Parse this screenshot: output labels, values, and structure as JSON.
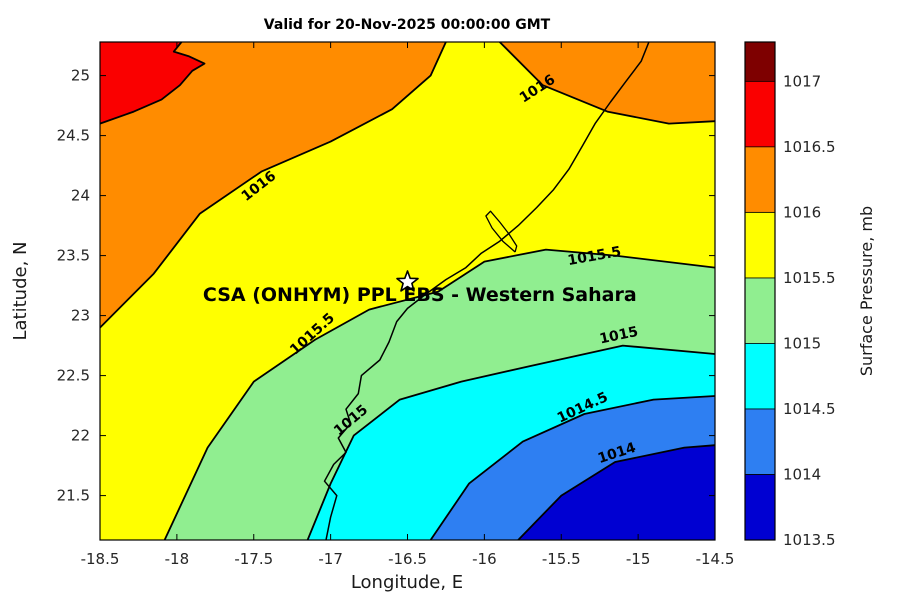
{
  "title": "Valid for 20-Nov-2025 00:00:00 GMT",
  "axes": {
    "xlabel": "Longitude, E",
    "ylabel": "Latitude, N",
    "xlim": [
      -18.5,
      -14.5
    ],
    "ylim": [
      21.13,
      25.28
    ],
    "xticks": [
      -18.5,
      -18,
      -17.5,
      -17,
      -16.5,
      -16,
      -15.5,
      -15,
      -14.5
    ],
    "yticks": [
      21.5,
      22,
      22.5,
      23,
      23.5,
      24,
      24.5,
      25
    ]
  },
  "colorbar": {
    "label": "Surface Pressure, mb",
    "range": [
      1013.5,
      1017.3
    ],
    "ticks": [
      1013.5,
      1014,
      1014.5,
      1015,
      1015.5,
      1016,
      1016.5,
      1017
    ],
    "bands": [
      {
        "from": 1013.5,
        "to": 1014,
        "color": "#0000D2"
      },
      {
        "from": 1014,
        "to": 1014.5,
        "color": "#2E7FF2"
      },
      {
        "from": 1014.5,
        "to": 1015,
        "color": "#00FFFF"
      },
      {
        "from": 1015,
        "to": 1015.5,
        "color": "#90EE90"
      },
      {
        "from": 1015.5,
        "to": 1016,
        "color": "#FFFF00"
      },
      {
        "from": 1016,
        "to": 1016.5,
        "color": "#FF8C00"
      },
      {
        "from": 1016.5,
        "to": 1017,
        "color": "#FA0000"
      },
      {
        "from": 1017,
        "to": 1017.3,
        "color": "#7E0000"
      }
    ]
  },
  "chart_data": {
    "type": "heatmap",
    "style": "filled-contour",
    "variable": "Surface Pressure",
    "units": "mb",
    "levels": [
      1014,
      1014.5,
      1015,
      1015.5,
      1016,
      1016.5
    ],
    "regions": [
      {
        "level": "< 1014",
        "color": "#0000D2",
        "polygon": [
          [
            -18.5,
            21.13
          ],
          [
            -14.5,
            21.13
          ],
          [
            -14.5,
            25.28
          ],
          [
            -18.5,
            25.28
          ]
        ]
      },
      {
        "level": ">= 1014",
        "color": "#2E7FF2",
        "polygon": [
          [
            -15.78,
            21.13
          ],
          [
            -15.5,
            21.5
          ],
          [
            -15.15,
            21.78
          ],
          [
            -14.7,
            21.9
          ],
          [
            -14.5,
            21.92
          ],
          [
            -14.5,
            25.28
          ],
          [
            -18.5,
            25.28
          ],
          [
            -18.5,
            21.13
          ]
        ]
      },
      {
        "level": ">= 1014.5",
        "color": "#00FFFF",
        "polygon": [
          [
            -16.35,
            21.13
          ],
          [
            -16.1,
            21.6
          ],
          [
            -15.75,
            21.95
          ],
          [
            -15.35,
            22.18
          ],
          [
            -14.9,
            22.3
          ],
          [
            -14.5,
            22.33
          ],
          [
            -14.5,
            25.28
          ],
          [
            -18.5,
            25.28
          ],
          [
            -18.5,
            21.13
          ]
        ]
      },
      {
        "level": ">= 1015",
        "color": "#90EE90",
        "polygon": [
          [
            -17.15,
            21.13
          ],
          [
            -17.0,
            21.6
          ],
          [
            -16.85,
            22.0
          ],
          [
            -16.55,
            22.3
          ],
          [
            -16.15,
            22.45
          ],
          [
            -15.7,
            22.58
          ],
          [
            -15.1,
            22.75
          ],
          [
            -14.5,
            22.68
          ],
          [
            -14.5,
            25.28
          ],
          [
            -18.5,
            25.28
          ],
          [
            -18.5,
            21.13
          ]
        ]
      },
      {
        "level": ">= 1015.5",
        "color": "#FFFF00",
        "polygon": [
          [
            -18.08,
            21.13
          ],
          [
            -17.8,
            21.9
          ],
          [
            -17.5,
            22.45
          ],
          [
            -17.1,
            22.8
          ],
          [
            -16.75,
            23.05
          ],
          [
            -16.3,
            23.2
          ],
          [
            -16.0,
            23.45
          ],
          [
            -15.6,
            23.55
          ],
          [
            -15.15,
            23.5
          ],
          [
            -14.5,
            23.4
          ],
          [
            -14.5,
            25.28
          ],
          [
            -18.5,
            25.28
          ],
          [
            -18.5,
            21.13
          ]
        ]
      },
      {
        "level": ">= 1016",
        "color": "#FF8C00",
        "polygon": [
          [
            -18.5,
            22.9
          ],
          [
            -18.15,
            23.35
          ],
          [
            -17.85,
            23.85
          ],
          [
            -17.45,
            24.2
          ],
          [
            -17.0,
            24.45
          ],
          [
            -16.6,
            24.72
          ],
          [
            -16.35,
            25.0
          ],
          [
            -16.25,
            25.28
          ],
          [
            -18.5,
            25.28
          ]
        ]
      },
      {
        "level": ">= 1016 NE",
        "color": "#FF8C00",
        "polygon": [
          [
            -15.9,
            25.28
          ],
          [
            -15.62,
            24.92
          ],
          [
            -15.2,
            24.7
          ],
          [
            -14.8,
            24.6
          ],
          [
            -14.5,
            24.62
          ],
          [
            -14.5,
            25.28
          ]
        ]
      },
      {
        "level": ">= 1016.5",
        "color": "#FA0000",
        "polygon": [
          [
            -18.5,
            24.6
          ],
          [
            -18.28,
            24.7
          ],
          [
            -18.1,
            24.8
          ],
          [
            -17.98,
            24.92
          ],
          [
            -17.9,
            25.04
          ],
          [
            -17.82,
            25.1
          ],
          [
            -17.92,
            25.16
          ],
          [
            -18.02,
            25.2
          ],
          [
            -17.97,
            25.28
          ],
          [
            -18.5,
            25.28
          ]
        ]
      }
    ],
    "contour_lines": [
      {
        "level": 1014,
        "points": [
          [
            -15.78,
            21.13
          ],
          [
            -15.5,
            21.5
          ],
          [
            -15.15,
            21.78
          ],
          [
            -14.7,
            21.9
          ],
          [
            -14.5,
            21.92
          ]
        ]
      },
      {
        "level": 1014.5,
        "points": [
          [
            -16.35,
            21.13
          ],
          [
            -16.1,
            21.6
          ],
          [
            -15.75,
            21.95
          ],
          [
            -15.35,
            22.18
          ],
          [
            -14.9,
            22.3
          ],
          [
            -14.5,
            22.33
          ]
        ]
      },
      {
        "level": 1015,
        "points": [
          [
            -17.15,
            21.13
          ],
          [
            -17.0,
            21.6
          ],
          [
            -16.85,
            22.0
          ],
          [
            -16.55,
            22.3
          ],
          [
            -16.15,
            22.45
          ],
          [
            -15.7,
            22.58
          ],
          [
            -15.1,
            22.75
          ],
          [
            -14.5,
            22.68
          ]
        ]
      },
      {
        "level": 1015.5,
        "points": [
          [
            -18.08,
            21.13
          ],
          [
            -17.8,
            21.9
          ],
          [
            -17.5,
            22.45
          ],
          [
            -17.1,
            22.8
          ],
          [
            -16.75,
            23.05
          ],
          [
            -16.3,
            23.2
          ],
          [
            -16.0,
            23.45
          ],
          [
            -15.6,
            23.55
          ],
          [
            -15.15,
            23.5
          ],
          [
            -14.5,
            23.4
          ]
        ]
      },
      {
        "level": 1016,
        "points": [
          [
            -18.5,
            22.9
          ],
          [
            -18.15,
            23.35
          ],
          [
            -17.85,
            23.85
          ],
          [
            -17.45,
            24.2
          ],
          [
            -17.0,
            24.45
          ],
          [
            -16.6,
            24.72
          ],
          [
            -16.35,
            25.0
          ],
          [
            -16.25,
            25.28
          ]
        ]
      },
      {
        "level": 1016,
        "points": [
          [
            -15.9,
            25.28
          ],
          [
            -15.62,
            24.92
          ],
          [
            -15.2,
            24.7
          ],
          [
            -14.8,
            24.6
          ],
          [
            -14.5,
            24.62
          ]
        ]
      },
      {
        "level": 1016.5,
        "points": [
          [
            -18.5,
            24.6
          ],
          [
            -18.28,
            24.7
          ],
          [
            -18.1,
            24.8
          ],
          [
            -17.98,
            24.92
          ],
          [
            -17.9,
            25.04
          ],
          [
            -17.82,
            25.1
          ],
          [
            -17.92,
            25.16
          ],
          [
            -18.02,
            25.2
          ],
          [
            -17.97,
            25.28
          ]
        ]
      }
    ],
    "contour_labels": [
      {
        "text": "1016",
        "lon": -17.45,
        "lat": 24.05,
        "rot": -38
      },
      {
        "text": "1016",
        "lon": -15.64,
        "lat": 24.86,
        "rot": -33
      },
      {
        "text": "1015.5",
        "lon": -17.1,
        "lat": 22.82,
        "rot": -42
      },
      {
        "text": "1015.5",
        "lon": -15.28,
        "lat": 23.46,
        "rot": -10
      },
      {
        "text": "1015",
        "lon": -16.85,
        "lat": 22.1,
        "rot": -40
      },
      {
        "text": "1015",
        "lon": -15.12,
        "lat": 22.8,
        "rot": -12
      },
      {
        "text": "1014.5",
        "lon": -15.35,
        "lat": 22.2,
        "rot": -25
      },
      {
        "text": "1014",
        "lon": -15.13,
        "lat": 21.82,
        "rot": -18
      }
    ],
    "coastline": [
      [
        -17.03,
        21.13
      ],
      [
        -17.0,
        21.32
      ],
      [
        -16.96,
        21.5
      ],
      [
        -17.04,
        21.62
      ],
      [
        -16.98,
        21.76
      ],
      [
        -16.9,
        21.86
      ],
      [
        -16.95,
        21.98
      ],
      [
        -16.87,
        22.1
      ],
      [
        -16.9,
        22.22
      ],
      [
        -16.82,
        22.35
      ],
      [
        -16.8,
        22.5
      ],
      [
        -16.68,
        22.63
      ],
      [
        -16.62,
        22.78
      ],
      [
        -16.57,
        22.95
      ],
      [
        -16.5,
        23.06
      ],
      [
        -16.38,
        23.18
      ],
      [
        -16.25,
        23.3
      ],
      [
        -16.12,
        23.4
      ],
      [
        -16.02,
        23.52
      ],
      [
        -15.9,
        23.62
      ],
      [
        -15.78,
        23.75
      ],
      [
        -15.66,
        23.9
      ],
      [
        -15.55,
        24.05
      ],
      [
        -15.45,
        24.22
      ],
      [
        -15.36,
        24.42
      ],
      [
        -15.28,
        24.6
      ],
      [
        -15.18,
        24.78
      ],
      [
        -15.08,
        24.95
      ],
      [
        -14.98,
        25.12
      ],
      [
        -14.93,
        25.28
      ]
    ],
    "peninsula": [
      [
        -15.8,
        23.53
      ],
      [
        -15.88,
        23.62
      ],
      [
        -15.95,
        23.73
      ],
      [
        -15.99,
        23.83
      ],
      [
        -15.96,
        23.87
      ],
      [
        -15.9,
        23.78
      ],
      [
        -15.84,
        23.68
      ],
      [
        -15.79,
        23.58
      ],
      [
        -15.8,
        23.53
      ]
    ],
    "site": {
      "label": "CSA (ONHYM) PPL EBS  - Western Sahara",
      "label_lon": -16.42,
      "label_lat": 23.12,
      "marker_lon": -16.5,
      "marker_lat": 23.28
    }
  }
}
